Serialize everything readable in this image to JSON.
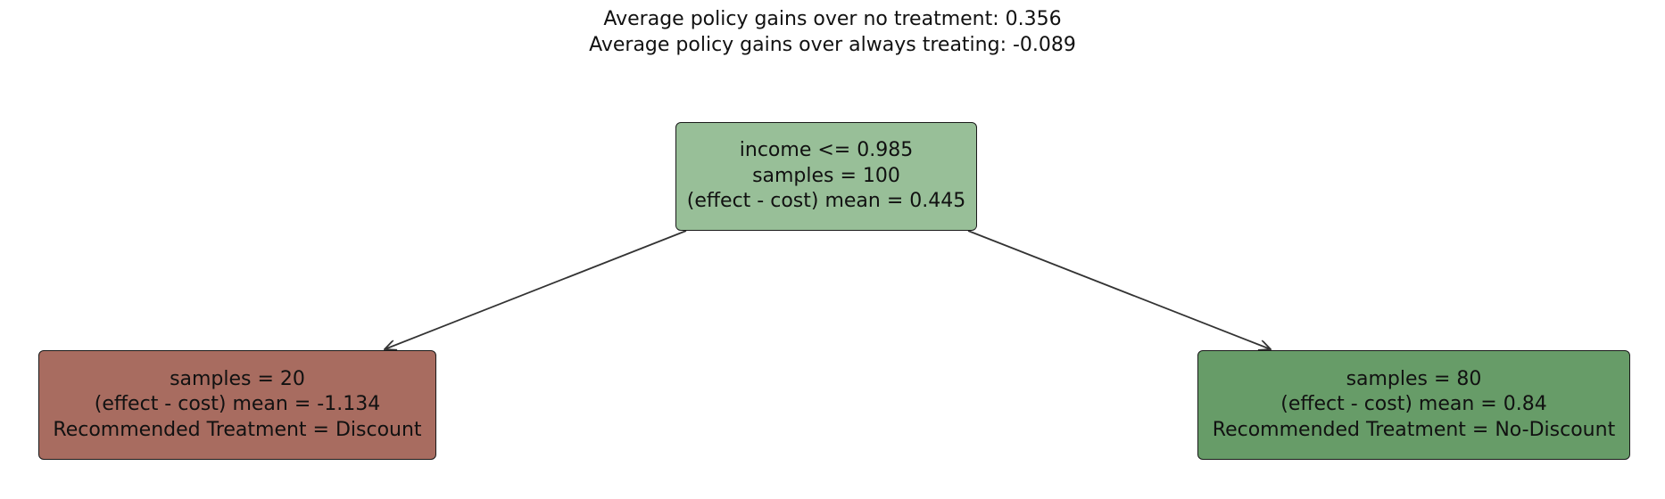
{
  "title": {
    "line1": "Average policy gains over no treatment: 0.356",
    "line2": "Average policy gains over always treating: -0.089"
  },
  "tree": {
    "root": {
      "split": "income <= 0.985",
      "samples": "samples = 100",
      "mean": "(effect - cost) mean = 0.445",
      "fill_color": "#98bf98"
    },
    "left": {
      "samples": "samples = 20",
      "mean": "(effect - cost) mean = -1.134",
      "treatment": "Recommended Treatment = Discount",
      "fill_color": "#a86c60"
    },
    "right": {
      "samples": "samples = 80",
      "mean": "(effect - cost) mean = 0.84",
      "treatment": "Recommended Treatment = No-Discount",
      "fill_color": "#679c68"
    }
  },
  "colors": {
    "edge": "#333333",
    "border": "#1a1a1a",
    "text": "#111111"
  }
}
